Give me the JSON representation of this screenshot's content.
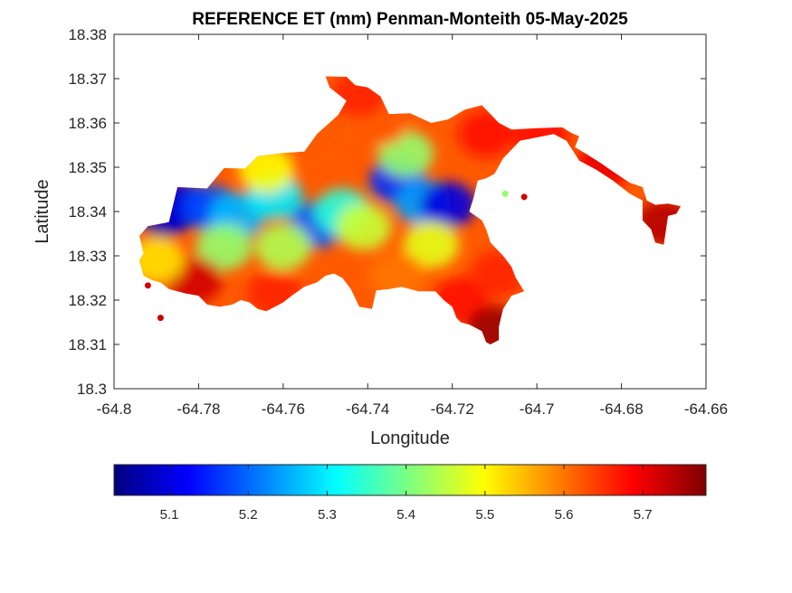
{
  "chart_data": {
    "type": "heatmap",
    "title": "REFERENCE ET (mm) Penman-Monteith 05-May-2025",
    "xlabel": "Longitude",
    "ylabel": "Latitude",
    "xlim": [
      -64.8,
      -64.66
    ],
    "ylim": [
      18.3,
      18.38
    ],
    "xticks": [
      "-64.8",
      "-64.78",
      "-64.76",
      "-64.74",
      "-64.72",
      "-64.7",
      "-64.68",
      "-64.66"
    ],
    "yticks": [
      "18.3",
      "18.31",
      "18.32",
      "18.33",
      "18.34",
      "18.35",
      "18.36",
      "18.37",
      "18.38"
    ],
    "colormap": "jet",
    "colorbar": {
      "orientation": "horizontal",
      "placement": "bottom",
      "range": [
        5.03,
        5.78
      ],
      "ticks": [
        "5.1",
        "5.2",
        "5.3",
        "5.4",
        "5.5",
        "5.6",
        "5.7"
      ]
    },
    "island_outline": [
      [
        -64.792,
        18.3367
      ],
      [
        -64.787,
        18.3376
      ],
      [
        -64.785,
        18.3455
      ],
      [
        -64.778,
        18.3452
      ],
      [
        -64.774,
        18.3498
      ],
      [
        -64.769,
        18.3497
      ],
      [
        -64.766,
        18.3525
      ],
      [
        -64.76,
        18.3532
      ],
      [
        -64.755,
        18.3535
      ],
      [
        -64.752,
        18.3575
      ],
      [
        -64.747,
        18.3618
      ],
      [
        -64.745,
        18.365
      ],
      [
        -64.749,
        18.368
      ],
      [
        -64.75,
        18.3705
      ],
      [
        -64.745,
        18.3704
      ],
      [
        -64.743,
        18.3685
      ],
      [
        -64.74,
        18.368
      ],
      [
        -64.737,
        18.366
      ],
      [
        -64.735,
        18.362
      ],
      [
        -64.73,
        18.3622
      ],
      [
        -64.725,
        18.36
      ],
      [
        -64.721,
        18.3608
      ],
      [
        -64.717,
        18.363
      ],
      [
        -64.713,
        18.364
      ],
      [
        -64.711,
        18.362
      ],
      [
        -64.709,
        18.36
      ],
      [
        -64.706,
        18.3585
      ],
      [
        -64.7,
        18.3588
      ],
      [
        -64.694,
        18.359
      ],
      [
        -64.692,
        18.3578
      ],
      [
        -64.69,
        18.357
      ],
      [
        -64.691,
        18.3545
      ],
      [
        -64.688,
        18.3528
      ],
      [
        -64.685,
        18.351
      ],
      [
        -64.682,
        18.349
      ],
      [
        -64.678,
        18.3465
      ],
      [
        -64.675,
        18.3455
      ],
      [
        -64.674,
        18.3425
      ],
      [
        -64.672,
        18.3415
      ],
      [
        -64.669,
        18.3418
      ],
      [
        -64.666,
        18.3412
      ],
      [
        -64.667,
        18.3395
      ],
      [
        -64.669,
        18.339
      ],
      [
        -64.67,
        18.3325
      ],
      [
        -64.672,
        18.333
      ],
      [
        -64.673,
        18.336
      ],
      [
        -64.675,
        18.338
      ],
      [
        -64.675,
        18.3425
      ],
      [
        -64.678,
        18.344
      ],
      [
        -64.682,
        18.347
      ],
      [
        -64.686,
        18.3495
      ],
      [
        -64.69,
        18.3515
      ],
      [
        -64.693,
        18.356
      ],
      [
        -64.696,
        18.3575
      ],
      [
        -64.704,
        18.356
      ],
      [
        -64.708,
        18.352
      ],
      [
        -64.71,
        18.3485
      ],
      [
        -64.712,
        18.3475
      ],
      [
        -64.714,
        18.347
      ],
      [
        -64.715,
        18.343
      ],
      [
        -64.716,
        18.34
      ],
      [
        -64.713,
        18.338
      ],
      [
        -64.712,
        18.336
      ],
      [
        -64.711,
        18.333
      ],
      [
        -64.708,
        18.33
      ],
      [
        -64.706,
        18.3275
      ],
      [
        -64.705,
        18.325
      ],
      [
        -64.703,
        18.322
      ],
      [
        -64.706,
        18.321
      ],
      [
        -64.708,
        18.318
      ],
      [
        -64.709,
        18.314
      ],
      [
        -64.709,
        18.311
      ],
      [
        -64.711,
        18.31
      ],
      [
        -64.712,
        18.3105
      ],
      [
        -64.713,
        18.313
      ],
      [
        -64.716,
        18.3145
      ],
      [
        -64.718,
        18.315
      ],
      [
        -64.719,
        18.316
      ],
      [
        -64.72,
        18.3185
      ],
      [
        -64.722,
        18.32
      ],
      [
        -64.724,
        18.322
      ],
      [
        -64.728,
        18.322
      ],
      [
        -64.732,
        18.323
      ],
      [
        -64.735,
        18.3225
      ],
      [
        -64.738,
        18.3222
      ],
      [
        -64.739,
        18.318
      ],
      [
        -64.742,
        18.3185
      ],
      [
        -64.744,
        18.3225
      ],
      [
        -64.746,
        18.325
      ],
      [
        -64.748,
        18.326
      ],
      [
        -64.75,
        18.3255
      ],
      [
        -64.752,
        18.324
      ],
      [
        -64.755,
        18.323
      ],
      [
        -64.758,
        18.321
      ],
      [
        -64.76,
        18.3195
      ],
      [
        -64.762,
        18.3185
      ],
      [
        -64.764,
        18.3175
      ],
      [
        -64.766,
        18.318
      ],
      [
        -64.768,
        18.3195
      ],
      [
        -64.77,
        18.32
      ],
      [
        -64.772,
        18.319
      ],
      [
        -64.775,
        18.3185
      ],
      [
        -64.778,
        18.319
      ],
      [
        -64.78,
        18.321
      ],
      [
        -64.783,
        18.3215
      ],
      [
        -64.785,
        18.322
      ],
      [
        -64.787,
        18.3225
      ],
      [
        -64.789,
        18.324
      ],
      [
        -64.791,
        18.3245
      ],
      [
        -64.793,
        18.3255
      ],
      [
        -64.794,
        18.329
      ],
      [
        -64.793,
        18.3305
      ],
      [
        -64.794,
        18.3345
      ]
    ],
    "isolated_features": [
      {
        "kind": "islet",
        "center": [
          -64.792,
          18.3233
        ],
        "value_class": "high"
      },
      {
        "kind": "islet",
        "center": [
          -64.789,
          18.316
        ],
        "value_class": "high"
      },
      {
        "kind": "islet",
        "center": [
          -64.703,
          18.3433
        ],
        "value_class": "high"
      },
      {
        "kind": "islet",
        "center": [
          -64.7075,
          18.344
        ],
        "value_class": "mid"
      }
    ],
    "field_features": [
      {
        "lon": -64.788,
        "lat": 18.3395,
        "value": 5.06
      },
      {
        "lon": -64.784,
        "lat": 18.3415,
        "value": 5.1
      },
      {
        "lon": -64.777,
        "lat": 18.3408,
        "value": 5.18
      },
      {
        "lon": -64.771,
        "lat": 18.339,
        "value": 5.26
      },
      {
        "lon": -64.762,
        "lat": 18.3435,
        "value": 5.3
      },
      {
        "lon": -64.752,
        "lat": 18.337,
        "value": 5.2
      },
      {
        "lon": -64.746,
        "lat": 18.34,
        "value": 5.34
      },
      {
        "lon": -64.733,
        "lat": 18.347,
        "value": 5.16
      },
      {
        "lon": -64.727,
        "lat": 18.342,
        "value": 5.24
      },
      {
        "lon": -64.721,
        "lat": 18.3415,
        "value": 5.1
      },
      {
        "lon": -64.731,
        "lat": 18.353,
        "value": 5.42
      },
      {
        "lon": -64.741,
        "lat": 18.3365,
        "value": 5.46
      },
      {
        "lon": -64.725,
        "lat": 18.3325,
        "value": 5.48
      },
      {
        "lon": -64.76,
        "lat": 18.332,
        "value": 5.44
      },
      {
        "lon": -64.774,
        "lat": 18.332,
        "value": 5.42
      },
      {
        "lon": -64.764,
        "lat": 18.3495,
        "value": 5.5
      },
      {
        "lon": -64.737,
        "lat": 18.36,
        "value": 5.62
      },
      {
        "lon": -64.712,
        "lat": 18.3575,
        "value": 5.68
      },
      {
        "lon": -64.742,
        "lat": 18.3665,
        "value": 5.66
      },
      {
        "lon": -64.781,
        "lat": 18.3245,
        "value": 5.72
      },
      {
        "lon": -64.762,
        "lat": 18.3215,
        "value": 5.66
      },
      {
        "lon": -64.733,
        "lat": 18.3255,
        "value": 5.6
      },
      {
        "lon": -64.718,
        "lat": 18.32,
        "value": 5.68
      },
      {
        "lon": -64.71,
        "lat": 18.3135,
        "value": 5.76
      },
      {
        "lon": -64.709,
        "lat": 18.326,
        "value": 5.66
      },
      {
        "lon": -64.67,
        "lat": 18.3375,
        "value": 5.74
      },
      {
        "lon": -64.684,
        "lat": 18.3505,
        "value": 5.7
      },
      {
        "lon": -64.699,
        "lat": 18.357,
        "value": 5.68
      },
      {
        "lon": -64.79,
        "lat": 18.329,
        "value": 5.52
      }
    ]
  },
  "colors": {
    "jet_stops": [
      "#00007f",
      "#0000ff",
      "#007fff",
      "#00ffff",
      "#7fff7f",
      "#ffff00",
      "#ff7f00",
      "#ff0000",
      "#7f0000"
    ],
    "axis": "#262626",
    "background": "#ffffff"
  }
}
